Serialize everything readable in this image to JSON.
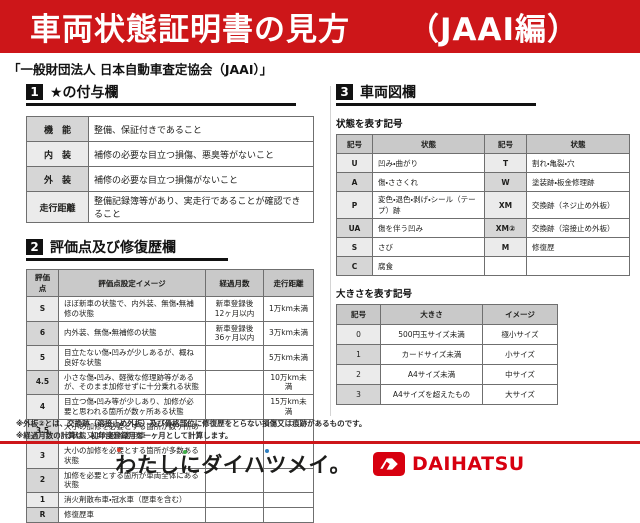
{
  "title": {
    "main": "車両状態証明書の見方",
    "edition": "（JAAI編）"
  },
  "subtitle": "「一般財団法人 日本自動車査定協会（JAAI）」",
  "sections": {
    "star": {
      "num": "1",
      "heading": "★の付与欄",
      "rows": [
        [
          "機　能",
          "整備、保証付きであること"
        ],
        [
          "内　装",
          "補修の必要な目立つ損傷、悪臭等がないこと"
        ],
        [
          "外　装",
          "補修の必要な目立つ損傷がないこと"
        ],
        [
          "走行距離",
          "整備記録簿等があり、実走行であることが確認できること"
        ]
      ]
    },
    "eval": {
      "num": "2",
      "heading": "評価点及び修復歴欄",
      "headers": [
        "評価点",
        "評価点設定イメージ",
        "経過月数",
        "走行距離"
      ],
      "rows": [
        [
          "S",
          "ほぼ新車の状態で、内外装、無傷・無補修の状態",
          "新車登録後12ヶ月以内",
          "1万km未満"
        ],
        [
          "6",
          "内外装、無傷・無補修の状態",
          "新車登録後36ヶ月以内",
          "3万km未満"
        ],
        [
          "5",
          "目立たない傷・凹みが少しあるが、概ね良好な状態",
          "",
          "5万km未満"
        ],
        [
          "4.5",
          "小さな傷・凹み、軽微な修理跡等があるが、そのまま加修せずに十分乗れる状態",
          "",
          "10万km未満"
        ],
        [
          "4",
          "目立つ傷・凹み等が少しあり、加修が必要と思われる箇所が数ヶ所ある状態",
          "",
          "15万km未満"
        ],
        [
          "3.5",
          "大小の加修を必要とする箇所が数ヶ所ある状態又は外板②適用車",
          "",
          ""
        ],
        [
          "3",
          "大小の加修を必要とする箇所が多数ある状態",
          "",
          ""
        ],
        [
          "2",
          "加修を必要とする箇所が車両全体にある状態",
          "",
          ""
        ],
        [
          "1",
          "消火剤散布車・冠水車（歴車を含む）",
          "",
          ""
        ],
        [
          "R",
          "修復歴車",
          "",
          ""
        ]
      ]
    },
    "diagram": {
      "num": "3",
      "heading": "車両図欄",
      "state": {
        "label": "状態を表す記号",
        "headers": [
          "記号",
          "状態",
          "記号",
          "状態"
        ],
        "rows": [
          [
            "U",
            "凹み・曲がり",
            "T",
            "割れ・亀裂・穴"
          ],
          [
            "A",
            "傷・ささくれ",
            "W",
            "塗装跡・板金修理跡"
          ],
          [
            "P",
            "変色・退色・剥げ・シール（テープ）跡",
            "XM",
            "交換跡（ネジ止め外板）"
          ],
          [
            "UA",
            "傷を伴う凹み",
            "XM②",
            "交換跡（溶接止め外板）"
          ],
          [
            "S",
            "さび",
            "M",
            "修復歴"
          ],
          [
            "C",
            "腐食",
            "",
            ""
          ]
        ]
      },
      "size": {
        "label": "大きさを表す記号",
        "headers": [
          "記号",
          "大きさ",
          "イメージ"
        ],
        "rows": [
          [
            "0",
            "500円玉サイズ未満",
            "極小サイズ"
          ],
          [
            "1",
            "カードサイズ未満",
            "小サイズ"
          ],
          [
            "2",
            "A4サイズ未満",
            "中サイズ"
          ],
          [
            "3",
            "A4サイズを超えたもの",
            "大サイズ"
          ]
        ]
      }
    }
  },
  "notes": [
    "※外板②とは、交換跡（溶接止め外板）及び骨格部位に修復歴をとらない損傷又は痕跡があるものです。",
    "※経過月数の計算は、初年度登録月を一ヶ月として計算します。"
  ],
  "footer": {
    "slogan": "わたしにダイハツメイ。",
    "brand": "DAIHATSU"
  },
  "colors": {
    "banner_red": "#cd1619",
    "brand_red": "#d7000f",
    "ink": "#1d1d1b",
    "accent_red": "#e23c2c",
    "accent_green": "#3fae49",
    "accent_blue": "#2f7fc1"
  }
}
